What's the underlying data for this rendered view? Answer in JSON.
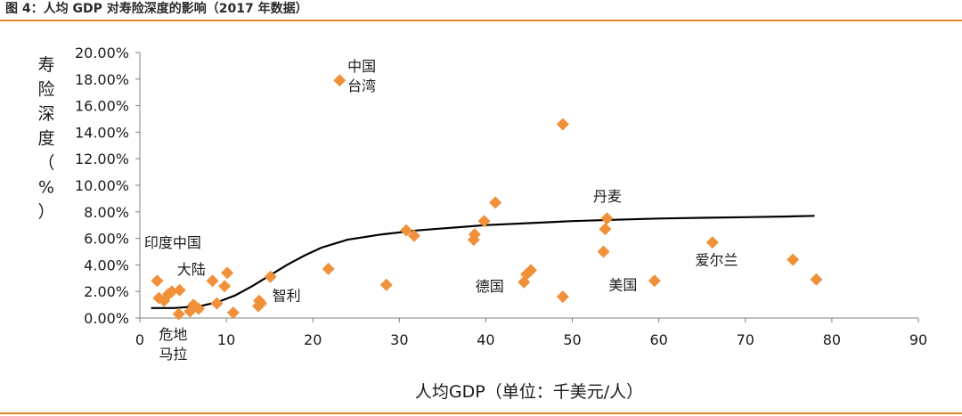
{
  "header": {
    "title": "图 4：人均 GDP 对寿险深度的影响（2017 年数据）"
  },
  "colors": {
    "accent": "#e8822b",
    "marker": "#f0913a",
    "curve": "#000000"
  },
  "chart_data": {
    "type": "scatter",
    "title": "",
    "xlabel": "人均GDP（单位：千美元/人）",
    "ylabel": [
      "寿",
      "险",
      "深",
      "度",
      "（",
      "%",
      "）"
    ],
    "xlim": [
      0,
      90
    ],
    "ylim": [
      0,
      20
    ],
    "x_ticks": [
      0,
      10,
      20,
      30,
      40,
      50,
      60,
      70,
      80,
      90
    ],
    "y_ticks": [
      0,
      2,
      4,
      6,
      8,
      10,
      12,
      14,
      16,
      18,
      20
    ],
    "y_tick_labels": [
      "0.00%",
      "2.00%",
      "4.00%",
      "6.00%",
      "8.00%",
      "10.00%",
      "12.00%",
      "14.00%",
      "16.00%",
      "18.00%",
      "20.00%"
    ],
    "grid": false,
    "series": [
      {
        "name": "countries",
        "marker": "diamond",
        "points": [
          [
            2.0,
            2.8
          ],
          [
            2.2,
            1.5
          ],
          [
            2.8,
            1.3
          ],
          [
            3.3,
            1.8
          ],
          [
            3.7,
            2.0
          ],
          [
            4.5,
            0.3
          ],
          [
            4.6,
            2.1
          ],
          [
            5.8,
            0.5
          ],
          [
            6.2,
            1.0
          ],
          [
            6.8,
            0.7
          ],
          [
            8.4,
            2.8
          ],
          [
            8.9,
            1.1
          ],
          [
            9.8,
            2.4
          ],
          [
            10.1,
            3.4
          ],
          [
            10.8,
            0.4
          ],
          [
            13.7,
            0.9
          ],
          [
            13.8,
            1.3
          ],
          [
            14.0,
            1.1
          ],
          [
            15.1,
            3.1
          ],
          [
            21.8,
            3.7
          ],
          [
            23.1,
            17.9
          ],
          [
            28.5,
            2.5
          ],
          [
            30.8,
            6.6
          ],
          [
            31.7,
            6.2
          ],
          [
            38.6,
            5.9
          ],
          [
            38.7,
            6.3
          ],
          [
            39.8,
            7.3
          ],
          [
            41.1,
            8.7
          ],
          [
            44.4,
            2.7
          ],
          [
            44.7,
            3.3
          ],
          [
            45.2,
            3.6
          ],
          [
            48.9,
            14.6
          ],
          [
            48.9,
            1.6
          ],
          [
            53.6,
            5.0
          ],
          [
            53.8,
            6.7
          ],
          [
            54.0,
            7.5
          ],
          [
            59.5,
            2.8
          ],
          [
            66.2,
            5.7
          ],
          [
            75.5,
            4.4
          ],
          [
            78.2,
            2.9
          ]
        ]
      }
    ],
    "trend_curve": {
      "type": "logistic",
      "points": [
        [
          1.3,
          0.75
        ],
        [
          4,
          0.75
        ],
        [
          7,
          0.9
        ],
        [
          9,
          1.2
        ],
        [
          11,
          1.7
        ],
        [
          13,
          2.4
        ],
        [
          15,
          3.2
        ],
        [
          17,
          4.0
        ],
        [
          19,
          4.7
        ],
        [
          21,
          5.3
        ],
        [
          24,
          5.9
        ],
        [
          28,
          6.3
        ],
        [
          32,
          6.6
        ],
        [
          36,
          6.8
        ],
        [
          40,
          7.0
        ],
        [
          45,
          7.15
        ],
        [
          50,
          7.3
        ],
        [
          55,
          7.4
        ],
        [
          60,
          7.5
        ],
        [
          65,
          7.55
        ],
        [
          70,
          7.6
        ],
        [
          75,
          7.65
        ],
        [
          78,
          7.7
        ]
      ]
    },
    "annotations": [
      {
        "lines": [
          "中国",
          "台湾"
        ],
        "x": 24.0,
        "y": 18.6,
        "anchor": "start"
      },
      {
        "lines": [
          "印度中国"
        ],
        "x": 0.5,
        "y": 5.3,
        "anchor": "start"
      },
      {
        "lines": [
          "大陆"
        ],
        "x": 4.3,
        "y": 3.3,
        "anchor": "start"
      },
      {
        "lines": [
          "危地",
          "马拉"
        ],
        "x": 2.2,
        "y": -1.6,
        "anchor": "start"
      },
      {
        "lines": [
          "智利"
        ],
        "x": 15.3,
        "y": 1.3,
        "anchor": "start"
      },
      {
        "lines": [
          "德国"
        ],
        "x": 38.8,
        "y": 2.0,
        "anchor": "start"
      },
      {
        "lines": [
          "丹麦"
        ],
        "x": 52.4,
        "y": 8.8,
        "anchor": "start"
      },
      {
        "lines": [
          "美国"
        ],
        "x": 54.2,
        "y": 2.1,
        "anchor": "start"
      },
      {
        "lines": [
          "爱尔兰"
        ],
        "x": 64.2,
        "y": 4.0,
        "anchor": "start"
      }
    ]
  }
}
